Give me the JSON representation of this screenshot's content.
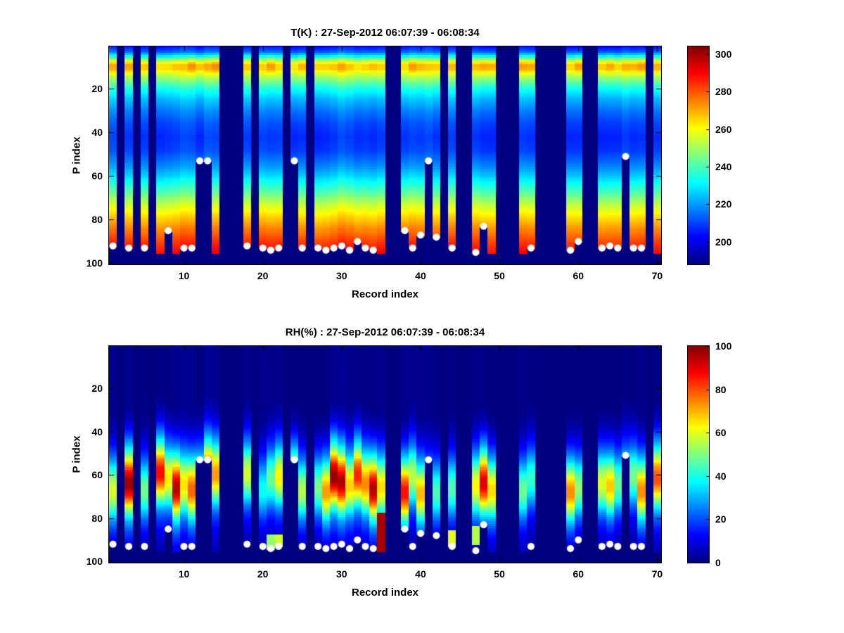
{
  "figure": {
    "background": "#ffffff",
    "marker_color": "#ffffff",
    "axis_color": "#000000"
  },
  "chart_data": [
    {
      "type": "heatmap",
      "title": "T(K) : 27-Sep-2012 06:07:39 - 06:08:34",
      "xlabel": "Record index",
      "ylabel": "P index",
      "x_range": [
        1,
        70
      ],
      "y_range": [
        1,
        100
      ],
      "y_reversed": true,
      "x_ticks": [
        10,
        20,
        30,
        40,
        50,
        60,
        70
      ],
      "y_ticks": [
        20,
        40,
        60,
        80,
        100
      ],
      "colormap": "jet",
      "legend": "none",
      "colorbar": {
        "min": 188,
        "max": 304,
        "ticks": [
          200,
          220,
          240,
          260,
          280,
          300
        ]
      },
      "value_profile": [
        [
          1,
          206
        ],
        [
          3,
          214
        ],
        [
          5,
          232
        ],
        [
          7,
          256
        ],
        [
          9,
          269
        ],
        [
          11,
          268
        ],
        [
          13,
          258
        ],
        [
          16,
          246
        ],
        [
          20,
          234
        ],
        [
          25,
          224
        ],
        [
          30,
          217
        ],
        [
          36,
          211
        ],
        [
          42,
          208
        ],
        [
          48,
          210
        ],
        [
          54,
          217
        ],
        [
          60,
          227
        ],
        [
          66,
          239
        ],
        [
          72,
          252
        ],
        [
          78,
          264
        ],
        [
          84,
          274
        ],
        [
          90,
          283
        ],
        [
          95,
          289
        ],
        [
          100,
          291
        ]
      ],
      "variation": {
        "offset": 5,
        "band_amp": 10,
        "band_center": 9,
        "band_width": 3
      },
      "missing_records": [
        2,
        4,
        6,
        15,
        16,
        17,
        19,
        23,
        26,
        36,
        37,
        43,
        45,
        46,
        50,
        51,
        52,
        55,
        56,
        57,
        58,
        61,
        62,
        69
      ],
      "default_surface_p": 95,
      "surface_dots": [
        [
          1,
          92
        ],
        [
          3,
          93
        ],
        [
          5,
          93
        ],
        [
          8,
          85
        ],
        [
          10,
          93
        ],
        [
          11,
          93
        ],
        [
          12,
          53
        ],
        [
          13,
          53
        ],
        [
          18,
          92
        ],
        [
          20,
          93
        ],
        [
          21,
          94
        ],
        [
          22,
          93
        ],
        [
          24,
          53
        ],
        [
          25,
          93
        ],
        [
          27,
          93
        ],
        [
          28,
          94
        ],
        [
          29,
          93
        ],
        [
          30,
          92
        ],
        [
          31,
          94
        ],
        [
          32,
          90
        ],
        [
          33,
          93
        ],
        [
          34,
          94
        ],
        [
          38,
          85
        ],
        [
          39,
          93
        ],
        [
          40,
          87
        ],
        [
          41,
          53
        ],
        [
          42,
          88
        ],
        [
          44,
          93
        ],
        [
          47,
          95
        ],
        [
          48,
          83
        ],
        [
          54,
          93
        ],
        [
          59,
          94
        ],
        [
          60,
          90
        ],
        [
          63,
          93
        ],
        [
          64,
          92
        ],
        [
          65,
          93
        ],
        [
          66,
          51
        ],
        [
          67,
          93
        ],
        [
          68,
          93
        ]
      ]
    },
    {
      "type": "heatmap",
      "title": "RH(%) : 27-Sep-2012 06:07:39 - 06:08:34",
      "xlabel": "Record index",
      "ylabel": "P index",
      "x_range": [
        1,
        70
      ],
      "y_range": [
        1,
        100
      ],
      "y_reversed": true,
      "x_ticks": [
        10,
        20,
        30,
        40,
        50,
        60,
        70
      ],
      "y_ticks": [
        20,
        40,
        60,
        80,
        100
      ],
      "colormap": "jet",
      "legend": "none",
      "colorbar": {
        "min": 0,
        "max": 100,
        "ticks": [
          0,
          20,
          40,
          60,
          80,
          100
        ]
      },
      "value_profile": [
        [
          1,
          1
        ],
        [
          28,
          1
        ],
        [
          34,
          4
        ],
        [
          38,
          8
        ],
        [
          42,
          14
        ],
        [
          46,
          22
        ],
        [
          50,
          32
        ],
        [
          54,
          46
        ],
        [
          58,
          60
        ],
        [
          62,
          68
        ],
        [
          66,
          68
        ],
        [
          70,
          58
        ],
        [
          74,
          44
        ],
        [
          78,
          30
        ],
        [
          82,
          20
        ],
        [
          86,
          14
        ],
        [
          90,
          10
        ],
        [
          94,
          7
        ],
        [
          100,
          4
        ]
      ],
      "variation": {
        "offset": 2,
        "shift": 10,
        "scale_base": 0.55,
        "scale_spread": 0.9
      },
      "overrides": [
        {
          "record": 21,
          "p_min": 88,
          "p_max": 94,
          "value": 52
        },
        {
          "record": 22,
          "p_min": 88,
          "p_max": 93,
          "value": 58
        },
        {
          "record": 35,
          "p_min": 78,
          "p_max": 95,
          "value": 96
        },
        {
          "record": 44,
          "p_min": 86,
          "p_max": 93,
          "value": 60
        },
        {
          "record": 47,
          "p_min": 84,
          "p_max": 92,
          "value": 55
        }
      ],
      "missing_records": [
        2,
        4,
        6,
        15,
        16,
        17,
        19,
        23,
        26,
        36,
        37,
        43,
        45,
        46,
        50,
        51,
        52,
        55,
        56,
        57,
        58,
        61,
        62,
        69
      ],
      "default_surface_p": 95,
      "surface_dots": [
        [
          1,
          92
        ],
        [
          3,
          93
        ],
        [
          5,
          93
        ],
        [
          8,
          85
        ],
        [
          10,
          93
        ],
        [
          11,
          93
        ],
        [
          12,
          53
        ],
        [
          13,
          53
        ],
        [
          18,
          92
        ],
        [
          20,
          93
        ],
        [
          21,
          94
        ],
        [
          22,
          93
        ],
        [
          24,
          53
        ],
        [
          25,
          93
        ],
        [
          27,
          93
        ],
        [
          28,
          94
        ],
        [
          29,
          93
        ],
        [
          30,
          92
        ],
        [
          31,
          94
        ],
        [
          32,
          90
        ],
        [
          33,
          93
        ],
        [
          34,
          94
        ],
        [
          38,
          85
        ],
        [
          39,
          93
        ],
        [
          40,
          87
        ],
        [
          41,
          53
        ],
        [
          42,
          88
        ],
        [
          44,
          93
        ],
        [
          47,
          95
        ],
        [
          48,
          83
        ],
        [
          54,
          93
        ],
        [
          59,
          94
        ],
        [
          60,
          90
        ],
        [
          63,
          93
        ],
        [
          64,
          92
        ],
        [
          65,
          93
        ],
        [
          66,
          51
        ],
        [
          67,
          93
        ],
        [
          68,
          93
        ]
      ]
    }
  ]
}
